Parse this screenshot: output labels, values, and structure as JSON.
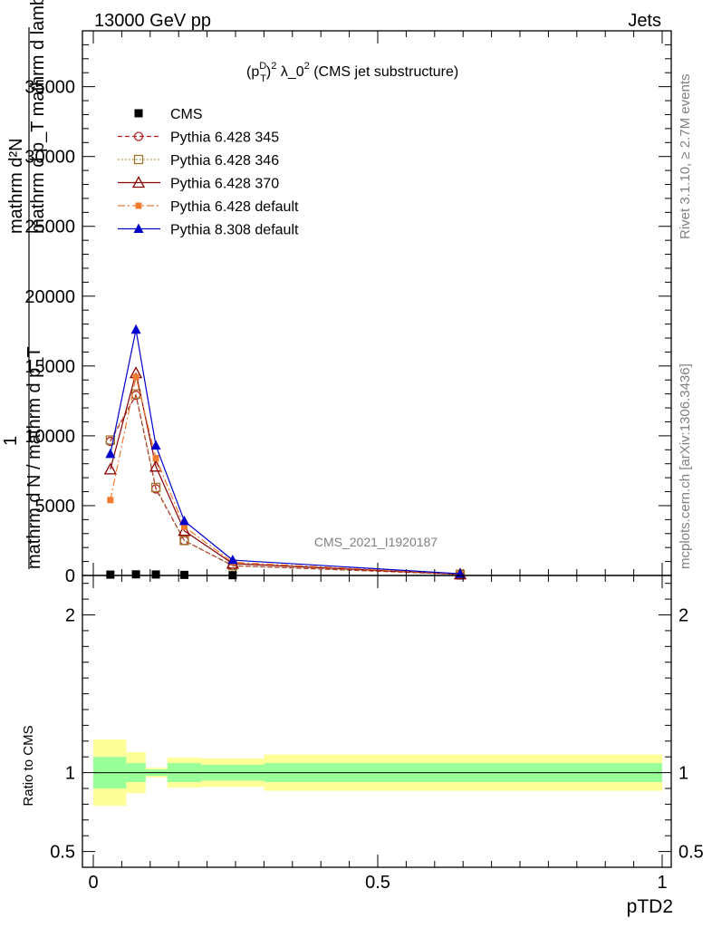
{
  "header": {
    "left": "13000 GeV pp",
    "right": "Jets"
  },
  "side_labels": {
    "rivet": "Rivet 3.1.10, ≥ 2.7M events",
    "mcplots": "mcplots.cern.ch [arXiv:1306.3436]"
  },
  "chart_data": [
    {
      "type": "line",
      "title": "(p_T^D)^2 λ_0^2 (CMS jet substructure)",
      "title_parts": {
        "p": "(p",
        "sub": "T",
        "sup": "D",
        "close": ")",
        "sq": "2",
        "lam": " λ_0",
        "sq2": "2",
        "rest": " (CMS jet substructure)"
      },
      "ylabel_top": "mathrm d²N",
      "ylabel_bottom": "mathrm d p_T mathrm d lambda",
      "ylabel_lead": "1",
      "ylabel_frac": "mathrm d N / mathrm d p_T",
      "ylabel_frac_sub": "T",
      "watermark": "CMS_2021_I1920187",
      "xlim": [
        0,
        1
      ],
      "ylim": [
        0,
        39000
      ],
      "y_ticks": [
        0,
        5000,
        10000,
        15000,
        20000,
        25000,
        30000,
        35000
      ],
      "y_tick_labels": [
        "0",
        "5000",
        "10000",
        "15000",
        "20000",
        "25000",
        "30000",
        "35000"
      ],
      "x": [
        0.03,
        0.075,
        0.11,
        0.16,
        0.245,
        0.645
      ],
      "series": [
        {
          "name": "CMS",
          "color": "#000000",
          "marker": "square-filled",
          "dash": "none",
          "values": [
            60,
            80,
            70,
            40,
            20,
            1
          ]
        },
        {
          "name": "Pythia 6.428 345",
          "color": "#b22222",
          "marker": "circle-open",
          "dash": "5,3",
          "values": [
            9600,
            12900,
            6200,
            2500,
            700,
            80
          ]
        },
        {
          "name": "Pythia 6.428 346",
          "color": "#a0782c",
          "marker": "square-open",
          "dash": "1.5,2.5",
          "values": [
            9700,
            13000,
            6300,
            2500,
            700,
            80
          ]
        },
        {
          "name": "Pythia 6.428 370",
          "color": "#8b0000",
          "marker": "triangle-open",
          "dash": "none",
          "values": [
            7600,
            14500,
            7800,
            3200,
            850,
            90
          ]
        },
        {
          "name": "Pythia 6.428 default",
          "color": "#f07c30",
          "marker": "square-filled-small",
          "dash": "8,3,2,3",
          "values": [
            5400,
            14200,
            8400,
            3500,
            950,
            100
          ]
        },
        {
          "name": "Pythia 8.308 default",
          "color": "#0000cc",
          "marker": "triangle-filled",
          "dash": "none",
          "values": [
            8700,
            17600,
            9300,
            3900,
            1100,
            120
          ]
        }
      ]
    },
    {
      "type": "area",
      "ylabel": "Ratio to CMS",
      "xlabel": "pTD2",
      "xlim": [
        0,
        1
      ],
      "ylim": [
        0.4,
        2.25
      ],
      "y_ticks": [
        0.5,
        1,
        2
      ],
      "y_tick_labels": [
        "0.5",
        "1",
        "2"
      ],
      "x_ticks": [
        0,
        0.5,
        1
      ],
      "x_tick_labels": [
        "0",
        "0.5",
        "1"
      ],
      "bands": [
        {
          "x0": 0.0,
          "x1": 0.058,
          "stat": [
            0.9,
            1.1
          ],
          "total": [
            0.79,
            1.21
          ]
        },
        {
          "x0": 0.058,
          "x1": 0.092,
          "stat": [
            0.94,
            1.06
          ],
          "total": [
            0.87,
            1.13
          ]
        },
        {
          "x0": 0.092,
          "x1": 0.13,
          "stat": [
            0.98,
            1.02
          ],
          "total": [
            0.97,
            1.03
          ]
        },
        {
          "x0": 0.13,
          "x1": 0.19,
          "stat": [
            0.94,
            1.06
          ],
          "total": [
            0.905,
            1.095
          ]
        },
        {
          "x0": 0.19,
          "x1": 0.3,
          "stat": [
            0.95,
            1.05
          ],
          "total": [
            0.91,
            1.09
          ]
        },
        {
          "x0": 0.3,
          "x1": 1.0,
          "stat": [
            0.94,
            1.06
          ],
          "total": [
            0.885,
            1.115
          ]
        }
      ],
      "colors": {
        "stat": "#99ff99",
        "total": "#ffff99"
      }
    }
  ]
}
